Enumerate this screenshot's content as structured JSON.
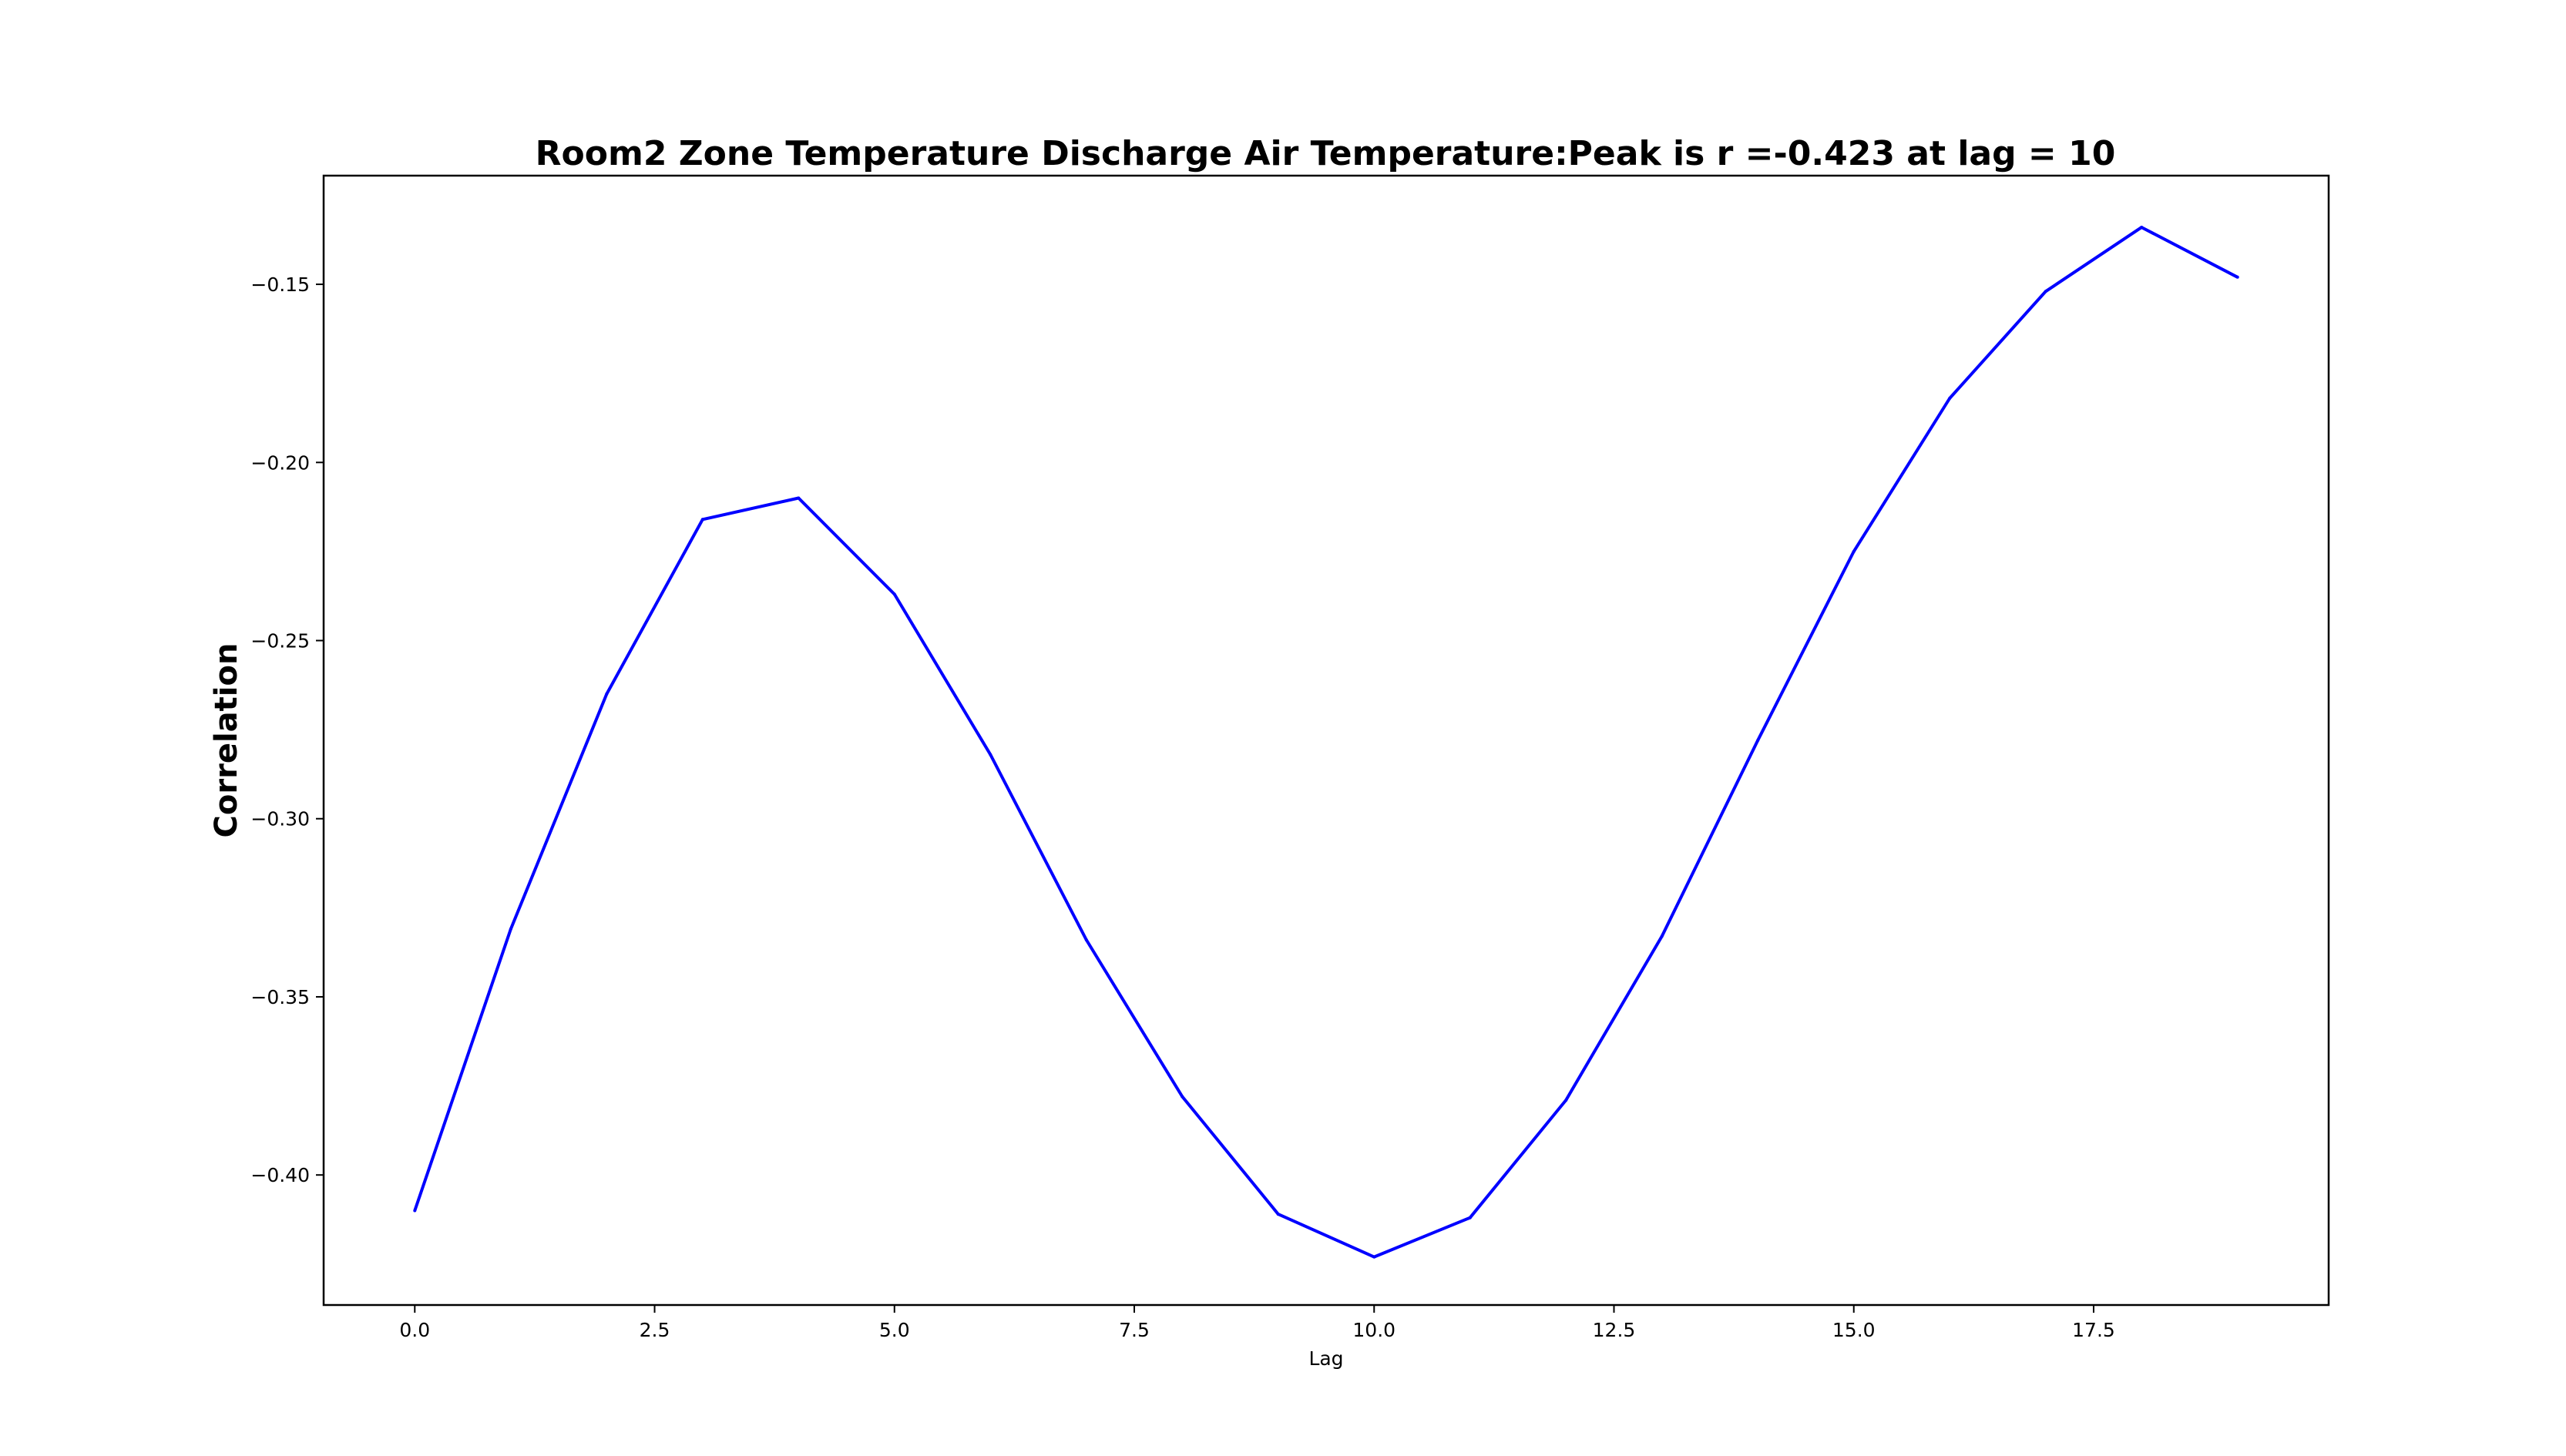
{
  "chart_data": {
    "type": "line",
    "title": "Room2 Zone Temperature Discharge Air Temperature:Peak is r =-0.423 at lag = 10",
    "xlabel": "Lag",
    "ylabel": "Correlation",
    "xlim": [
      -0.95,
      19.95
    ],
    "ylim": [
      -0.4365,
      -0.1195
    ],
    "xticks": [
      0.0,
      2.5,
      5.0,
      7.5,
      10.0,
      12.5,
      15.0,
      17.5
    ],
    "xtick_labels": [
      "0.0",
      "2.5",
      "5.0",
      "7.5",
      "10.0",
      "12.5",
      "15.0",
      "17.5"
    ],
    "yticks": [
      -0.4,
      -0.35,
      -0.3,
      -0.25,
      -0.2,
      -0.15
    ],
    "ytick_labels": [
      "−0.40",
      "−0.35",
      "−0.30",
      "−0.25",
      "−0.20",
      "−0.15"
    ],
    "grid": false,
    "series": [
      {
        "color": "#0000ff",
        "x": [
          0,
          1,
          2,
          3,
          4,
          5,
          6,
          7,
          8,
          9,
          10,
          11,
          12,
          13,
          14,
          15,
          16,
          17,
          18,
          19
        ],
        "values": [
          -0.41,
          -0.331,
          -0.265,
          -0.216,
          -0.21,
          -0.237,
          -0.282,
          -0.334,
          -0.378,
          -0.411,
          -0.423,
          -0.412,
          -0.379,
          -0.333,
          -0.278,
          -0.225,
          -0.182,
          -0.152,
          -0.134,
          -0.148
        ]
      }
    ]
  }
}
